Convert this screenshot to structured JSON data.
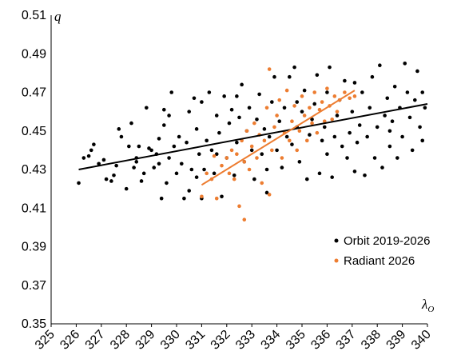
{
  "chart_data": {
    "type": "scatter",
    "title": "",
    "xlabel": "λ",
    "xlabel_subscript": "O",
    "ylabel": "q",
    "xlim": [
      325,
      340
    ],
    "ylim": [
      0.35,
      0.51
    ],
    "x_ticks": [
      "325",
      "326",
      "327",
      "328",
      "329",
      "330",
      "331",
      "332",
      "333",
      "334",
      "335",
      "336",
      "337",
      "338",
      "339",
      "340"
    ],
    "y_ticks": [
      "0.35",
      "0.37",
      "0.39",
      "0.41",
      "0.43",
      "0.45",
      "0.47",
      "0.49",
      "0.51"
    ],
    "grid": false,
    "legend_position": "bottom-right",
    "series": [
      {
        "name": "Orbit 2019-2026",
        "color": "#000000",
        "points": [
          [
            326.1,
            0.423
          ],
          [
            326.3,
            0.436
          ],
          [
            326.5,
            0.437
          ],
          [
            326.6,
            0.44
          ],
          [
            326.7,
            0.443
          ],
          [
            326.9,
            0.433
          ],
          [
            327.1,
            0.435
          ],
          [
            327.2,
            0.425
          ],
          [
            327.4,
            0.424
          ],
          [
            327.5,
            0.427
          ],
          [
            327.6,
            0.432
          ],
          [
            327.7,
            0.451
          ],
          [
            327.8,
            0.447
          ],
          [
            328.0,
            0.42
          ],
          [
            328.1,
            0.442
          ],
          [
            328.2,
            0.454
          ],
          [
            328.3,
            0.431
          ],
          [
            328.4,
            0.436
          ],
          [
            328.5,
            0.442
          ],
          [
            328.6,
            0.424
          ],
          [
            328.7,
            0.428
          ],
          [
            328.8,
            0.462
          ],
          [
            328.9,
            0.441
          ],
          [
            329.0,
            0.44
          ],
          [
            329.1,
            0.431
          ],
          [
            329.2,
            0.438
          ],
          [
            329.3,
            0.433
          ],
          [
            329.3,
            0.446
          ],
          [
            329.4,
            0.415
          ],
          [
            329.5,
            0.453
          ],
          [
            329.5,
            0.461
          ],
          [
            329.6,
            0.423
          ],
          [
            329.7,
            0.436
          ],
          [
            329.7,
            0.458
          ],
          [
            329.8,
            0.47
          ],
          [
            329.9,
            0.442
          ],
          [
            330.0,
            0.428
          ],
          [
            330.1,
            0.447
          ],
          [
            330.2,
            0.433
          ],
          [
            330.3,
            0.415
          ],
          [
            330.4,
            0.444
          ],
          [
            330.5,
            0.419
          ],
          [
            330.5,
            0.46
          ],
          [
            330.6,
            0.43
          ],
          [
            330.7,
            0.467
          ],
          [
            330.8,
            0.451
          ],
          [
            330.9,
            0.438
          ],
          [
            331.0,
            0.415
          ],
          [
            331.0,
            0.465
          ],
          [
            331.1,
            0.43
          ],
          [
            331.2,
            0.445
          ],
          [
            331.3,
            0.47
          ],
          [
            331.4,
            0.44
          ],
          [
            331.5,
            0.428
          ],
          [
            331.6,
            0.458
          ],
          [
            331.7,
            0.449
          ],
          [
            331.8,
            0.416
          ],
          [
            331.9,
            0.468
          ],
          [
            332.0,
            0.436
          ],
          [
            332.1,
            0.454
          ],
          [
            332.2,
            0.461
          ],
          [
            332.3,
            0.427
          ],
          [
            332.4,
            0.444
          ],
          [
            332.5,
            0.457
          ],
          [
            332.6,
            0.474
          ],
          [
            332.7,
            0.434
          ],
          [
            332.8,
            0.45
          ],
          [
            332.9,
            0.462
          ],
          [
            333.0,
            0.44
          ],
          [
            333.1,
            0.425
          ],
          [
            333.2,
            0.456
          ],
          [
            333.3,
            0.469
          ],
          [
            333.4,
            0.438
          ],
          [
            333.5,
            0.451
          ],
          [
            333.6,
            0.43
          ],
          [
            333.7,
            0.447
          ],
          [
            333.8,
            0.465
          ],
          [
            333.9,
            0.478
          ],
          [
            334.0,
            0.44
          ],
          [
            334.1,
            0.455
          ],
          [
            334.2,
            0.431
          ],
          [
            334.3,
            0.462
          ],
          [
            334.4,
            0.447
          ],
          [
            334.5,
            0.478
          ],
          [
            334.6,
            0.443
          ],
          [
            334.7,
            0.483
          ],
          [
            334.8,
            0.452
          ],
          [
            334.9,
            0.434
          ],
          [
            335.0,
            0.46
          ],
          [
            335.1,
            0.471
          ],
          [
            335.2,
            0.425
          ],
          [
            335.3,
            0.448
          ],
          [
            335.4,
            0.456
          ],
          [
            335.5,
            0.464
          ],
          [
            335.6,
            0.479
          ],
          [
            335.7,
            0.428
          ],
          [
            335.8,
            0.445
          ],
          [
            335.9,
            0.452
          ],
          [
            336.0,
            0.47
          ],
          [
            336.1,
            0.483
          ],
          [
            336.2,
            0.426
          ],
          [
            336.3,
            0.447
          ],
          [
            336.4,
            0.458
          ],
          [
            336.5,
            0.466
          ],
          [
            336.6,
            0.442
          ],
          [
            336.7,
            0.476
          ],
          [
            336.8,
            0.436
          ],
          [
            336.9,
            0.449
          ],
          [
            337.0,
            0.46
          ],
          [
            337.1,
            0.429
          ],
          [
            337.2,
            0.444
          ],
          [
            337.3,
            0.453
          ],
          [
            337.4,
            0.47
          ],
          [
            337.5,
            0.427
          ],
          [
            337.6,
            0.447
          ],
          [
            337.7,
            0.462
          ],
          [
            337.8,
            0.478
          ],
          [
            337.9,
            0.436
          ],
          [
            338.0,
            0.452
          ],
          [
            338.1,
            0.484
          ],
          [
            338.2,
            0.431
          ],
          [
            338.3,
            0.458
          ],
          [
            338.4,
            0.467
          ],
          [
            338.5,
            0.442
          ],
          [
            338.6,
            0.455
          ],
          [
            338.7,
            0.473
          ],
          [
            338.8,
            0.436
          ],
          [
            338.9,
            0.462
          ],
          [
            339.0,
            0.447
          ],
          [
            339.1,
            0.485
          ],
          [
            339.2,
            0.47
          ],
          [
            339.3,
            0.457
          ],
          [
            339.4,
            0.44
          ],
          [
            339.5,
            0.466
          ],
          [
            339.6,
            0.481
          ],
          [
            339.7,
            0.452
          ],
          [
            339.8,
            0.47
          ],
          [
            339.9,
            0.462
          ],
          [
            328.4,
            0.434
          ],
          [
            330.8,
            0.426
          ],
          [
            331.6,
            0.438
          ],
          [
            332.4,
            0.468
          ],
          [
            333.6,
            0.418
          ],
          [
            334.8,
            0.465
          ],
          [
            336.0,
            0.438
          ],
          [
            337.1,
            0.475
          ],
          [
            338.5,
            0.45
          ],
          [
            339.8,
            0.445
          ]
        ]
      },
      {
        "name": "Radiant 2026",
        "color": "#ED7D31",
        "points": [
          [
            331.0,
            0.416
          ],
          [
            331.2,
            0.428
          ],
          [
            331.4,
            0.425
          ],
          [
            331.5,
            0.437
          ],
          [
            331.6,
            0.415
          ],
          [
            331.8,
            0.432
          ],
          [
            332.0,
            0.436
          ],
          [
            332.1,
            0.428
          ],
          [
            332.2,
            0.44
          ],
          [
            332.3,
            0.425
          ],
          [
            332.4,
            0.438
          ],
          [
            332.5,
            0.411
          ],
          [
            332.6,
            0.445
          ],
          [
            332.7,
            0.404
          ],
          [
            332.7,
            0.434
          ],
          [
            332.8,
            0.45
          ],
          [
            332.9,
            0.43
          ],
          [
            333.0,
            0.442
          ],
          [
            333.1,
            0.454
          ],
          [
            333.2,
            0.436
          ],
          [
            333.3,
            0.448
          ],
          [
            333.4,
            0.423
          ],
          [
            333.5,
            0.445
          ],
          [
            333.6,
            0.462
          ],
          [
            333.7,
            0.482
          ],
          [
            333.7,
            0.417
          ],
          [
            333.8,
            0.44
          ],
          [
            333.9,
            0.452
          ],
          [
            334.0,
            0.458
          ],
          [
            334.1,
            0.466
          ],
          [
            334.2,
            0.436
          ],
          [
            334.3,
            0.449
          ],
          [
            334.4,
            0.471
          ],
          [
            334.5,
            0.445
          ],
          [
            334.6,
            0.455
          ],
          [
            334.7,
            0.463
          ],
          [
            334.8,
            0.44
          ],
          [
            334.9,
            0.45
          ],
          [
            335.0,
            0.468
          ],
          [
            335.1,
            0.458
          ],
          [
            335.2,
            0.445
          ],
          [
            335.3,
            0.462
          ],
          [
            335.4,
            0.454
          ],
          [
            335.5,
            0.47
          ],
          [
            335.6,
            0.449
          ],
          [
            335.7,
            0.461
          ],
          [
            335.8,
            0.465
          ],
          [
            335.9,
            0.455
          ],
          [
            336.0,
            0.472
          ],
          [
            336.1,
            0.463
          ],
          [
            336.2,
            0.456
          ],
          [
            336.3,
            0.468
          ],
          [
            336.4,
            0.46
          ],
          [
            336.5,
            0.466
          ],
          [
            336.7,
            0.47
          ],
          [
            336.9,
            0.467
          ],
          [
            337.1,
            0.468
          ]
        ]
      }
    ],
    "trendlines": [
      {
        "series": "Orbit 2019-2026",
        "x": [
          326.1,
          340.0
        ],
        "y": [
          0.43,
          0.464
        ],
        "color": "#000000"
      },
      {
        "series": "Radiant 2026",
        "x": [
          331.0,
          337.1
        ],
        "y": [
          0.422,
          0.471
        ],
        "color": "#ED7D31"
      }
    ]
  }
}
